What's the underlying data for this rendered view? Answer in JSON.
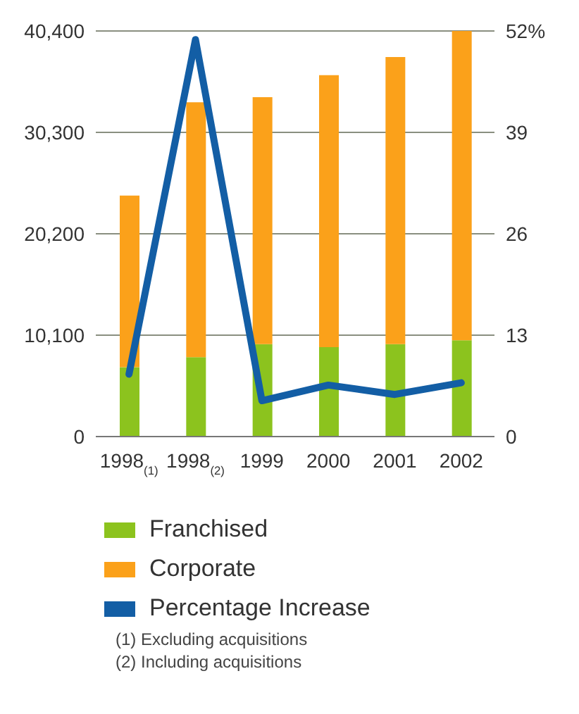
{
  "chart_data": {
    "type": "bar",
    "stacked": true,
    "categories": [
      "1998$_{(1)}$",
      "1998$_{(2)}$",
      "1999",
      "2000",
      "2001",
      "2002"
    ],
    "series": [
      {
        "name": "Franchised",
        "color": "#8cc31e",
        "values": [
          6900,
          7900,
          9200,
          8900,
          9200,
          9600
        ]
      },
      {
        "name": "Corporate",
        "color": "#fba11a",
        "values": [
          17100,
          25400,
          24600,
          27100,
          28600,
          30800
        ]
      },
      {
        "name": "Percentage Increase",
        "type": "line",
        "axis": "y2",
        "color": "#135ea5",
        "values": [
          8.0,
          50.9,
          4.6,
          6.6,
          5.4,
          6.9
        ]
      }
    ],
    "ylim": [
      0,
      40400
    ],
    "yticks": [
      0,
      {
        "value": 10100,
        "label": "10,100"
      },
      {
        "value": 20200,
        "label": "20,200"
      },
      {
        "value": 30300,
        "label": "30,300"
      },
      {
        "value": 40400,
        "label": "40,400"
      }
    ],
    "y2lim": [
      0,
      52
    ],
    "y2ticks": [
      0,
      13,
      26,
      39,
      {
        "value": 52,
        "label": "52%"
      }
    ],
    "grid": "y",
    "legend": "bottom",
    "marker": "none",
    "line_style": "solid",
    "annotations": [
      "(1) Excluding acquisitions",
      "(2) Including acquisitions"
    ]
  }
}
